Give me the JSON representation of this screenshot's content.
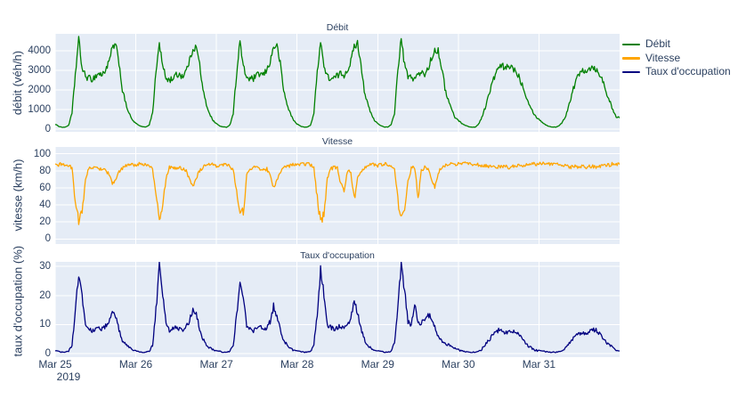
{
  "style": {
    "plot_bgcolor": "#e5ecf6",
    "grid_color": "#ffffff",
    "font_color": "#2a3f5f",
    "paper_color": "#ffffff"
  },
  "chart_data": {
    "type": "line",
    "x_axis": {
      "tick_labels": [
        "Mar 25",
        "Mar 26",
        "Mar 27",
        "Mar 28",
        "Mar 29",
        "Mar 30",
        "Mar 31"
      ],
      "year_label": "2019",
      "start": "2019-03-25 00:00",
      "days": 7,
      "sample_interval_hours": 1,
      "points_per_series": 168
    },
    "subplots": [
      {
        "title": "Débit",
        "ylabel": "débit (véh/h)",
        "yticks": [
          0,
          1000,
          2000,
          3000,
          4000
        ],
        "yrange": [
          -136,
          4864
        ],
        "series": "debit"
      },
      {
        "title": "Vitesse",
        "ylabel": "vitesse (km/h)",
        "yticks": [
          0,
          20,
          40,
          60,
          80,
          100
        ],
        "yrange": [
          -6,
          108
        ],
        "series": "vitesse"
      },
      {
        "title": "Taux d'occupation",
        "ylabel": "taux d'occupation (%)",
        "yticks": [
          0,
          10,
          20,
          30
        ],
        "yrange": [
          -1.2,
          31.6
        ],
        "series": "taux"
      }
    ],
    "legend": {
      "items": [
        {
          "label": "Débit",
          "color": "#008000"
        },
        {
          "label": "Vitesse",
          "color": "#ffa500"
        },
        {
          "label": "Taux d'occupation",
          "color": "#000080"
        }
      ]
    },
    "series": [
      {
        "key": "debit",
        "name": "Débit",
        "color": "#008000",
        "unit": "véh/h",
        "hourly": [
          250,
          150,
          100,
          100,
          200,
          800,
          2800,
          4600,
          3100,
          2700,
          2600,
          2550,
          2700,
          2850,
          2750,
          3050,
          3400,
          4150,
          4300,
          3400,
          2000,
          1300,
          800,
          450,
          300,
          180,
          120,
          110,
          220,
          850,
          2900,
          4400,
          3200,
          2600,
          2500,
          2600,
          2750,
          2800,
          2700,
          3000,
          3500,
          4100,
          4200,
          3300,
          1950,
          1250,
          780,
          430,
          280,
          160,
          110,
          100,
          210,
          820,
          2850,
          4500,
          3150,
          2650,
          2550,
          2580,
          2720,
          2830,
          2760,
          3020,
          3450,
          4200,
          4250,
          3350,
          1980,
          1270,
          790,
          440,
          270,
          155,
          105,
          100,
          205,
          810,
          2900,
          4550,
          3180,
          2680,
          2570,
          2590,
          2730,
          2840,
          2770,
          3030,
          3460,
          4220,
          4380,
          3380,
          1990,
          1280,
          795,
          445,
          290,
          170,
          115,
          105,
          215,
          830,
          3000,
          4650,
          3250,
          2700,
          2600,
          2620,
          2760,
          2860,
          2800,
          3100,
          3600,
          4050,
          4000,
          3200,
          2100,
          1500,
          1000,
          600,
          450,
          300,
          200,
          130,
          100,
          100,
          250,
          600,
          1100,
          1700,
          2300,
          2800,
          3100,
          3250,
          3050,
          3250,
          3150,
          3000,
          2700,
          2300,
          1800,
          1350,
          950,
          650,
          500,
          350,
          220,
          140,
          110,
          100,
          180,
          350,
          700,
          1300,
          1950,
          2450,
          2850,
          3050,
          3000,
          3100,
          3200,
          3050,
          2850,
          2450,
          1950,
          1450,
          950,
          600
        ]
      },
      {
        "key": "vitesse",
        "name": "Vitesse",
        "color": "#ffa500",
        "unit": "km/h",
        "hourly": [
          86,
          87,
          88,
          87,
          86,
          83,
          45,
          22,
          30,
          70,
          83,
          84,
          83,
          82,
          83,
          81,
          76,
          65,
          70,
          78,
          83,
          86,
          87,
          87,
          87,
          88,
          88,
          87,
          86,
          82,
          50,
          24,
          35,
          72,
          84,
          84,
          83,
          84,
          82,
          80,
          70,
          62,
          72,
          80,
          84,
          86,
          87,
          88,
          86,
          87,
          87,
          88,
          86,
          81,
          55,
          27,
          33,
          74,
          83,
          84,
          84,
          82,
          81,
          82,
          75,
          60,
          68,
          78,
          83,
          86,
          86,
          87,
          87,
          87,
          88,
          88,
          87,
          83,
          48,
          21,
          28,
          72,
          82,
          84,
          83,
          65,
          57,
          80,
          78,
          46,
          72,
          80,
          84,
          86,
          87,
          87,
          86,
          88,
          88,
          87,
          86,
          82,
          45,
          26,
          30,
          68,
          83,
          84,
          50,
          80,
          84,
          82,
          70,
          60,
          78,
          84,
          86,
          87,
          88,
          88,
          88,
          89,
          89,
          89,
          88,
          88,
          87,
          86,
          86,
          85,
          85,
          84,
          85,
          84,
          85,
          84,
          85,
          85,
          86,
          86,
          87,
          87,
          88,
          88,
          88,
          89,
          89,
          88,
          88,
          88,
          87,
          87,
          86,
          85,
          84,
          85,
          84,
          85,
          84,
          85,
          85,
          84,
          85,
          86,
          86,
          87,
          88,
          88
        ]
      },
      {
        "key": "taux",
        "name": "Taux d'occupation",
        "color": "#000080",
        "unit": "%",
        "hourly": [
          1,
          0.8,
          0.5,
          0.5,
          0.8,
          3,
          14,
          28,
          20,
          10,
          8.5,
          8,
          8.5,
          9,
          8.5,
          9.5,
          11,
          15.5,
          13,
          8,
          4.5,
          3,
          2,
          1.2,
          1,
          0.7,
          0.5,
          0.5,
          0.8,
          3,
          15,
          30,
          21,
          10,
          8,
          8.5,
          9,
          8.5,
          8,
          9,
          11.5,
          15,
          13.5,
          8.5,
          5,
          3,
          2,
          1.2,
          1,
          0.8,
          0.5,
          0.5,
          0.8,
          3,
          13,
          25,
          19,
          9.5,
          8.5,
          8,
          8.5,
          9,
          8.5,
          9,
          11,
          16.5,
          13,
          8,
          4.5,
          3,
          2,
          1.2,
          1,
          0.8,
          0.5,
          0.5,
          0.8,
          3,
          14,
          29,
          20,
          10,
          9,
          8.5,
          9,
          9.5,
          9,
          10,
          12,
          18.5,
          14,
          8.5,
          5,
          3,
          2,
          1.2,
          1,
          0.8,
          0.5,
          0.5,
          0.8,
          3.5,
          16,
          31,
          22,
          11,
          10,
          17,
          11,
          10.5,
          12,
          13.5,
          12,
          9,
          6,
          4.5,
          3.5,
          3,
          2.5,
          2,
          1.5,
          1,
          0.7,
          0.5,
          0.5,
          0.5,
          0.8,
          1.5,
          3,
          4.5,
          6,
          7.5,
          8,
          7.5,
          7,
          7.5,
          8,
          7.5,
          6.5,
          5,
          3.5,
          2.5,
          1.8,
          1.2,
          1.2,
          1,
          0.7,
          0.5,
          0.5,
          0.5,
          0.7,
          1,
          2,
          3.5,
          5,
          6,
          7,
          7.5,
          7,
          7.5,
          8.5,
          8,
          7,
          5.5,
          4,
          3,
          2,
          1
        ]
      }
    ]
  }
}
